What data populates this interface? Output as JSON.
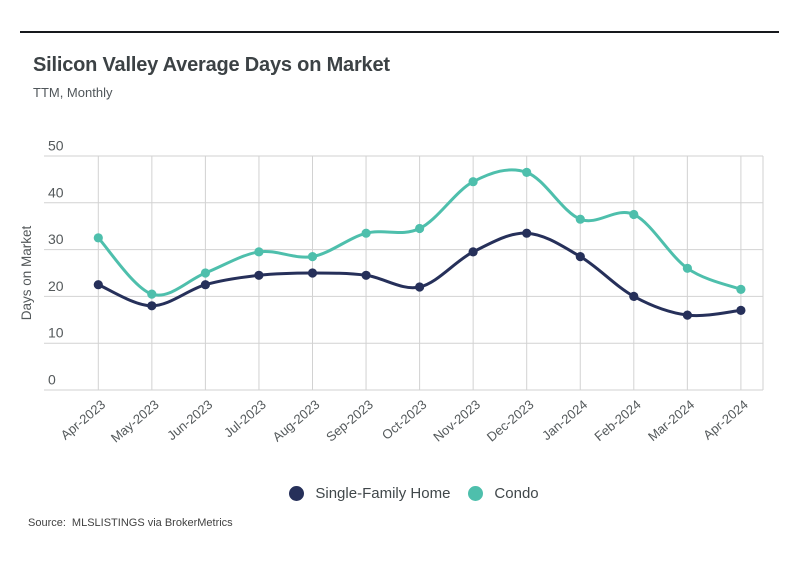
{
  "page": {
    "background": "#ffffff",
    "top_border_color": "#17191d"
  },
  "header": {
    "title": "Silicon Valley Average Days on Market",
    "subtitle": "TTM, Monthly"
  },
  "footer": {
    "source_label": "Source:",
    "source_text": "MLSLISTINGS via BrokerMetrics"
  },
  "chart_data": {
    "type": "line",
    "title": "Silicon Valley Average Days on Market",
    "subtitle": "TTM, Monthly",
    "xlabel": "",
    "ylabel": "Days on Market",
    "ylim": [
      0,
      50
    ],
    "yticks": [
      0,
      10,
      20,
      30,
      40,
      50
    ],
    "grid": true,
    "curve": "smooth",
    "marker": "circle",
    "legend_position": "bottom-center",
    "categories": [
      "Apr-2023",
      "May-2023",
      "Jun-2023",
      "Jul-2023",
      "Aug-2023",
      "Sep-2023",
      "Oct-2023",
      "Nov-2023",
      "Dec-2023",
      "Jan-2024",
      "Feb-2024",
      "Mar-2024",
      "Apr-2024"
    ],
    "series": [
      {
        "name": "Single-Family Home",
        "color": "#26305a",
        "values": [
          22.5,
          18,
          22.5,
          24.5,
          25,
          24.5,
          22,
          29.5,
          33.5,
          28.5,
          20,
          16,
          17
        ]
      },
      {
        "name": "Condo",
        "color": "#4ebfac",
        "values": [
          32.5,
          20.5,
          25,
          29.5,
          28.5,
          33.5,
          34.5,
          44.5,
          46.5,
          36.5,
          37.5,
          26,
          21.5
        ]
      }
    ],
    "colors": {
      "gridline": "#d2d2d2",
      "axis_text": "#54595b",
      "legend_text": "#40474a"
    }
  }
}
